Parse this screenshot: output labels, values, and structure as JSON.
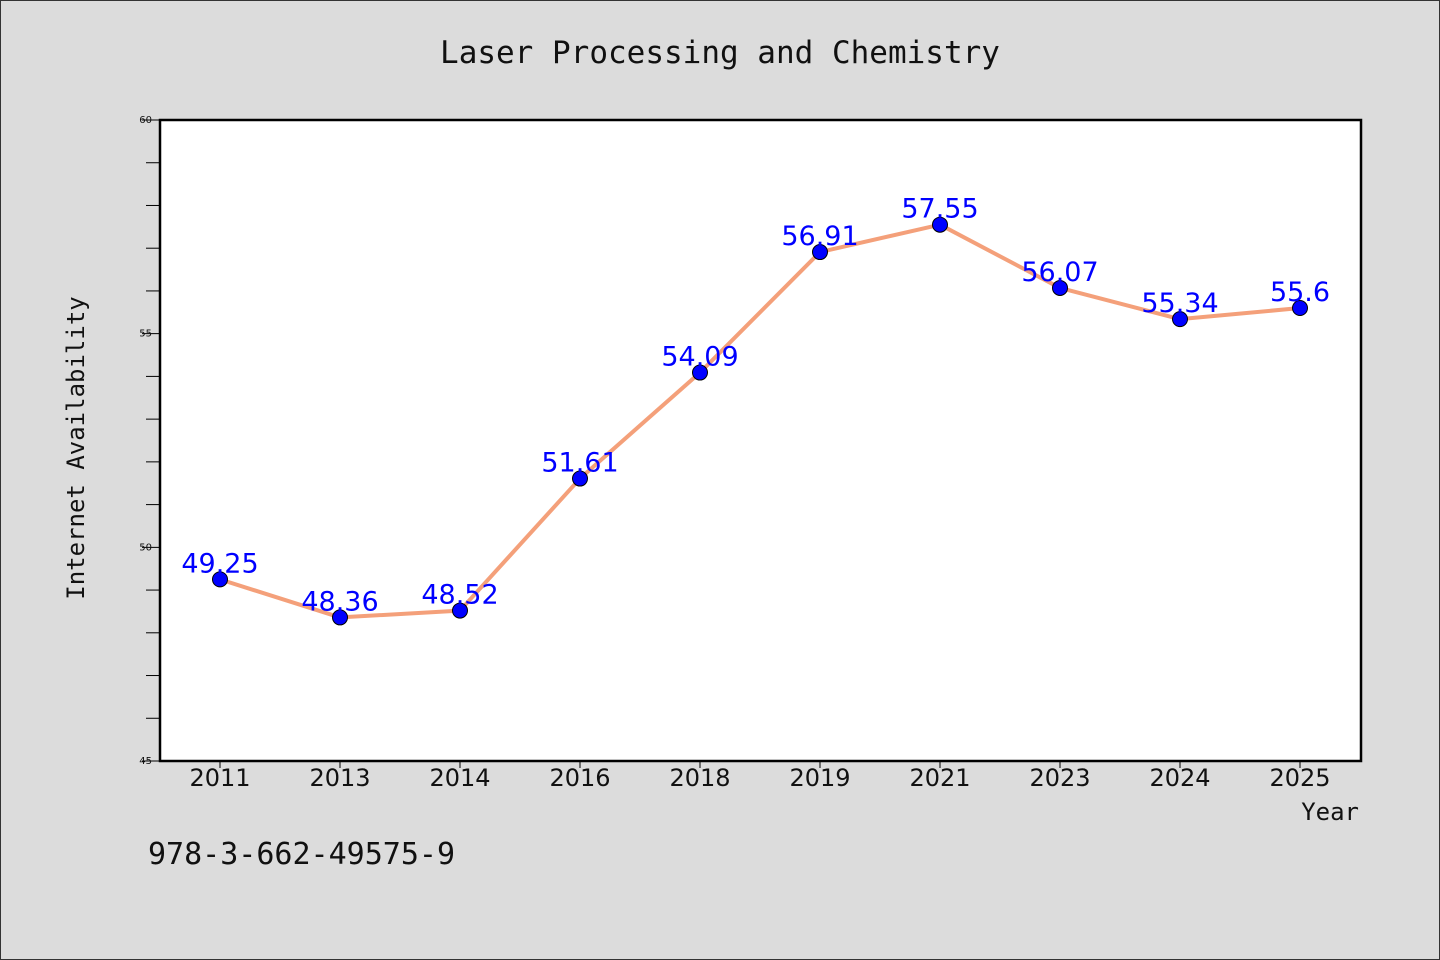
{
  "chart_data": {
    "type": "line",
    "title": "Laser Processing and Chemistry",
    "xlabel": "Year",
    "ylabel": "Internet Availability",
    "categories": [
      "2011",
      "2013",
      "2014",
      "2016",
      "2018",
      "2019",
      "2021",
      "2023",
      "2024",
      "2025"
    ],
    "series": [
      {
        "values": [
          49.25,
          48.36,
          48.52,
          51.61,
          54.09,
          56.91,
          57.55,
          56.07,
          55.34,
          55.6
        ]
      }
    ],
    "data_labels": [
      "49.25",
      "48.36",
      "48.52",
      "51.61",
      "54.09",
      "56.91",
      "57.55",
      "56.07",
      "55.34",
      "55.6"
    ],
    "ylim": [
      45,
      60
    ],
    "y_ticks": [
      45,
      50,
      55,
      60
    ],
    "y_minor_step": 1,
    "grid": false,
    "line_color": "#f4a07a",
    "marker_color": "#0000ff",
    "label_color": "#0000ff"
  },
  "footnote": "978-3-662-49575-9"
}
